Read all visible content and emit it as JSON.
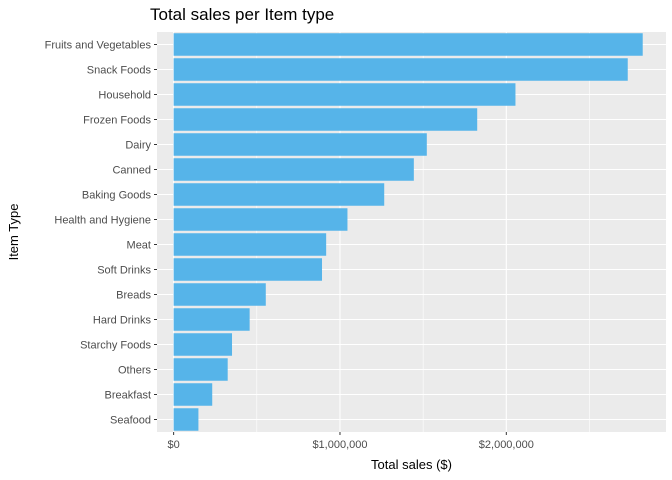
{
  "chart_data": {
    "type": "bar",
    "orientation": "horizontal",
    "title": "Total sales per Item type",
    "xlabel": "Total sales ($)",
    "ylabel": "Item Type",
    "categories": [
      "Fruits and Vegetables",
      "Snack Foods",
      "Household",
      "Frozen Foods",
      "Dairy",
      "Canned",
      "Baking Goods",
      "Health and Hygiene",
      "Meat",
      "Soft Drinks",
      "Breads",
      "Hard Drinks",
      "Starchy Foods",
      "Others",
      "Breakfast",
      "Seafood"
    ],
    "values": [
      2820000,
      2730000,
      2055000,
      1825000,
      1522000,
      1444000,
      1266000,
      1045000,
      917000,
      892000,
      554000,
      457000,
      351000,
      325000,
      232000,
      149000
    ],
    "xlim": [
      -100000,
      2960000
    ],
    "xticks": [
      0,
      1000000,
      2000000
    ],
    "xtick_labels": [
      "$0",
      "$1,000,000",
      "$2,000,000"
    ],
    "grid": true,
    "bar_color": "#56b4e9",
    "panel_color": "#ebebeb",
    "grid_color": "#ffffff"
  }
}
